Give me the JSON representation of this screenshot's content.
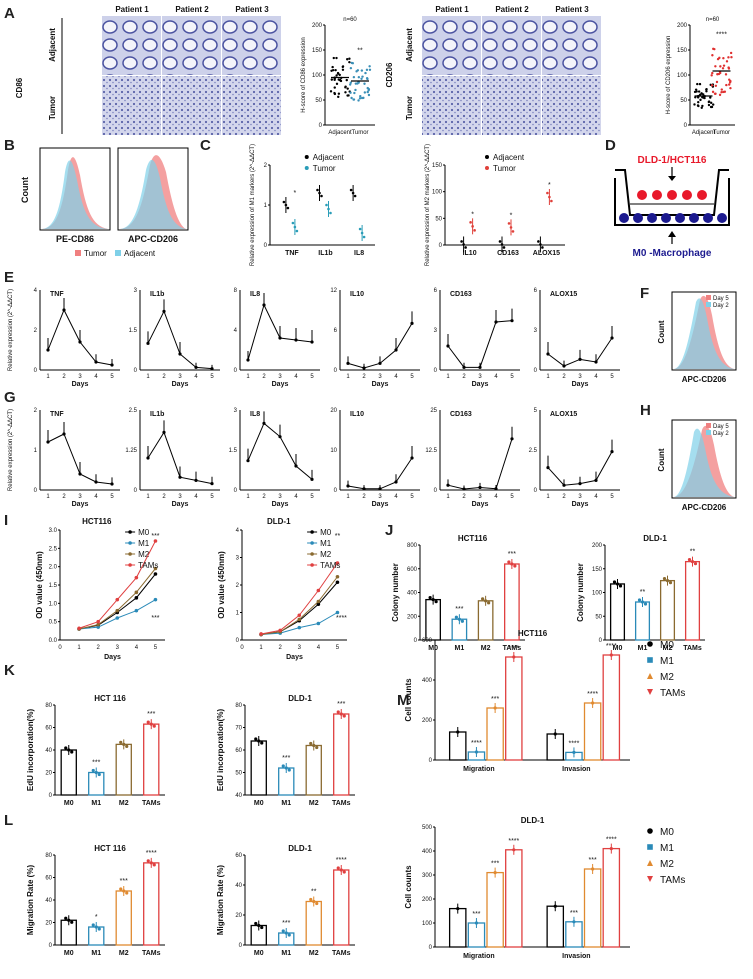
{
  "panel_letters": {
    "A": "A",
    "B": "B",
    "C": "C",
    "D": "D",
    "E": "E",
    "F": "F",
    "G": "G",
    "H": "H",
    "I": "I",
    "J": "J",
    "K": "K",
    "L": "L",
    "M": "M"
  },
  "panelA": {
    "patients": [
      "Patient 1",
      "Patient 2",
      "Patient 3"
    ],
    "left": {
      "marker": "CD86",
      "rows": [
        "Adjacent",
        "Tumor"
      ]
    },
    "right": {
      "marker": "CD206",
      "rows": [
        "Adjacent",
        "Tumor"
      ]
    },
    "colors": {
      "tissue_bg": "#c9cde6",
      "stain": "#8a5a3a",
      "nuclei": "#3b4496"
    }
  },
  "panelB": {
    "xlabels": [
      "PE-CD86",
      "APC-CD206"
    ],
    "ylabel": "Count",
    "legend": [
      "Tumor",
      "Adjacent"
    ],
    "colors": {
      "tumor": "#f08080",
      "adjacent": "#7fd0e8"
    }
  },
  "panelD": {
    "top": "DLD-1/HCT116",
    "bottom": "M0 -Macrophage",
    "colors": {
      "red": "#e8182a",
      "blue": "#1c1a8f"
    }
  },
  "panelF": {
    "legend": [
      "Day 5",
      "Day 2"
    ],
    "xlabel": "APC-CD206",
    "ylabel": "Count"
  },
  "panelH": {
    "legend": [
      "Day 5",
      "Day 2"
    ],
    "xlabel": "APC-CD206",
    "ylabel": "Count"
  },
  "chart_data": [
    {
      "id": "A1",
      "type": "scatter",
      "title": "n=60",
      "ylabel": "H-score of CD86 expression",
      "categories": [
        "Adjacent",
        "Tumor"
      ],
      "means": [
        95,
        88
      ],
      "sig": [
        "",
        "**"
      ],
      "colors": [
        "#000000",
        "#3a8fb7"
      ]
    },
    {
      "id": "A2",
      "type": "scatter",
      "title": "n=60",
      "ylabel": "H-score of CD206 expression",
      "categories": [
        "Adjacent",
        "Tumor"
      ],
      "means": [
        58,
        108
      ],
      "sig": [
        "",
        "****"
      ],
      "colors": [
        "#000000",
        "#e03030"
      ]
    },
    {
      "id": "C1",
      "type": "scatter",
      "ylabel": "Relative expression of M1 markers (2^-ΔΔCT)",
      "categories": [
        "TNF",
        "IL1b",
        "IL8"
      ],
      "legend": [
        "Adjacent",
        "Tumor"
      ],
      "adjacent": [
        1.0,
        1.3,
        1.3
      ],
      "tumor": [
        0.45,
        0.9,
        0.3
      ],
      "sig": [
        "*",
        "",
        ""
      ]
    },
    {
      "id": "C2",
      "type": "scatter",
      "ylabel": "Relative expression of M2 markers (2^-ΔΔCT)",
      "categories": [
        "IL10",
        "CD163",
        "ALOX15"
      ],
      "legend": [
        "Adjacent",
        "Tumor"
      ],
      "adjacent": [
        1,
        1,
        1
      ],
      "tumor": [
        35,
        33,
        90
      ],
      "sig": [
        "*",
        "*",
        "*"
      ]
    },
    {
      "id": "E",
      "type": "line",
      "ylabel": "Relative expression (2^-ΔΔCT)",
      "xlabel": "Days",
      "x": [
        1,
        2,
        3,
        4,
        5
      ],
      "series": [
        {
          "name": "TNF",
          "values": [
            1.0,
            3.0,
            1.4,
            0.4,
            0.25
          ],
          "ymax": 4
        },
        {
          "name": "IL1b",
          "values": [
            1.0,
            2.2,
            0.6,
            0.1,
            0.05
          ],
          "ymax": 3
        },
        {
          "name": "IL8",
          "values": [
            1.0,
            6.5,
            3.2,
            3.0,
            2.8
          ],
          "ymax": 8
        },
        {
          "name": "IL10",
          "values": [
            1.0,
            0.3,
            1.0,
            3.0,
            7.0
          ],
          "ymax": 12
        },
        {
          "name": "CD163",
          "values": [
            1.8,
            0.2,
            0.2,
            3.6,
            3.7
          ],
          "ymax": 6
        },
        {
          "name": "ALOX15",
          "values": [
            1.2,
            0.3,
            0.8,
            0.6,
            2.4
          ],
          "ymax": 6
        }
      ]
    },
    {
      "id": "G",
      "type": "line",
      "ylabel": "Relative expression (2^-ΔΔCT)",
      "xlabel": "Days",
      "x": [
        1,
        2,
        3,
        4,
        5
      ],
      "series": [
        {
          "name": "TNF",
          "values": [
            1.2,
            1.4,
            0.4,
            0.2,
            0.15
          ],
          "ymax": 2
        },
        {
          "name": "IL1b",
          "values": [
            1.0,
            1.8,
            0.4,
            0.3,
            0.2
          ],
          "ymax": 2.5
        },
        {
          "name": "IL8",
          "values": [
            1.1,
            2.5,
            2.0,
            0.9,
            0.4
          ],
          "ymax": 3
        },
        {
          "name": "IL10",
          "values": [
            1.0,
            0.3,
            0.3,
            2.0,
            8.0
          ],
          "ymax": 20
        },
        {
          "name": "CD163",
          "values": [
            1.5,
            0.3,
            0.8,
            0.4,
            16.0
          ],
          "ymax": 25
        },
        {
          "name": "ALOX15",
          "values": [
            1.4,
            0.3,
            0.4,
            0.6,
            2.4
          ],
          "ymax": 5
        }
      ]
    },
    {
      "id": "I1",
      "type": "line",
      "title": "HCT116",
      "ylabel": "OD value (450nm)",
      "xlabel": "Days",
      "x": [
        1,
        2,
        3,
        4,
        5
      ],
      "ylim": [
        0,
        3
      ],
      "yticks": [
        0.0,
        0.5,
        1.0,
        1.5,
        2.0,
        2.5,
        3.0
      ],
      "series": [
        {
          "name": "M0",
          "values": [
            0.3,
            0.4,
            0.75,
            1.15,
            1.8
          ]
        },
        {
          "name": "M1",
          "values": [
            0.3,
            0.35,
            0.6,
            0.8,
            1.1
          ]
        },
        {
          "name": "M2",
          "values": [
            0.3,
            0.42,
            0.8,
            1.3,
            1.95
          ]
        },
        {
          "name": "TAMs",
          "values": [
            0.32,
            0.5,
            1.1,
            1.7,
            2.7
          ]
        }
      ],
      "sig_top": "***",
      "sig_bottom": "***"
    },
    {
      "id": "I2",
      "type": "line",
      "title": "DLD-1",
      "ylabel": "OD value (450nm)",
      "xlabel": "Days",
      "x": [
        1,
        2,
        3,
        4,
        5
      ],
      "ylim": [
        0,
        4
      ],
      "yticks": [
        0,
        1,
        2,
        3,
        4
      ],
      "series": [
        {
          "name": "M0",
          "values": [
            0.2,
            0.3,
            0.7,
            1.3,
            2.1
          ]
        },
        {
          "name": "M1",
          "values": [
            0.2,
            0.25,
            0.45,
            0.6,
            1.0
          ]
        },
        {
          "name": "M2",
          "values": [
            0.2,
            0.3,
            0.75,
            1.4,
            2.3
          ]
        },
        {
          "name": "TAMs",
          "values": [
            0.22,
            0.35,
            0.9,
            1.8,
            2.8
          ]
        }
      ],
      "sig_top": "**",
      "sig_bottom": "****"
    },
    {
      "id": "J1",
      "type": "bar",
      "title": "HCT116",
      "ylabel": "Colony number",
      "categories": [
        "M0",
        "M1",
        "M2",
        "TAMs"
      ],
      "values": [
        340,
        175,
        330,
        640
      ],
      "ylim": [
        0,
        800
      ],
      "yticks": [
        0,
        200,
        400,
        600,
        800
      ],
      "sig": [
        "",
        "***",
        "",
        "***"
      ]
    },
    {
      "id": "J2",
      "type": "bar",
      "title": "DLD-1",
      "ylabel": "Colony number",
      "categories": [
        "M0",
        "M1",
        "M2",
        "TAMs"
      ],
      "values": [
        118,
        80,
        125,
        165
      ],
      "ylim": [
        0,
        200
      ],
      "yticks": [
        0,
        50,
        100,
        150,
        200
      ],
      "sig": [
        "",
        "**",
        "",
        "**"
      ]
    },
    {
      "id": "K1",
      "type": "bar",
      "title": "HCT 116",
      "ylabel": "EdU incorporation(%)",
      "categories": [
        "M0",
        "M1",
        "M2",
        "TAMs"
      ],
      "values": [
        40,
        20,
        45,
        63
      ],
      "ylim": [
        0,
        80
      ],
      "yticks": [
        0,
        20,
        40,
        60,
        80
      ],
      "sig": [
        "",
        "***",
        "",
        "***"
      ]
    },
    {
      "id": "K2",
      "type": "bar",
      "title": "DLD-1",
      "ylabel": "EdU incorporation(%)",
      "categories": [
        "M0",
        "M1",
        "M2",
        "TAMs"
      ],
      "values": [
        64,
        52,
        62,
        76
      ],
      "ylim": [
        40,
        80
      ],
      "yticks": [
        40,
        50,
        60,
        70,
        80
      ],
      "sig": [
        "",
        "***",
        "",
        "***"
      ]
    },
    {
      "id": "L1",
      "type": "bar",
      "title": "HCT 116",
      "ylabel": "Migration Rate (%)",
      "categories": [
        "M0",
        "M1",
        "M2",
        "TAMs"
      ],
      "values": [
        22,
        16,
        48,
        73
      ],
      "ylim": [
        0,
        80
      ],
      "yticks": [
        0,
        20,
        40,
        60,
        80
      ],
      "sig": [
        "",
        "*",
        "***",
        "****"
      ]
    },
    {
      "id": "L2",
      "type": "bar",
      "title": "DLD-1",
      "ylabel": "Migration Rate (%)",
      "categories": [
        "M0",
        "M1",
        "M2",
        "TAMs"
      ],
      "values": [
        13,
        8,
        29,
        50
      ],
      "ylim": [
        0,
        60
      ],
      "yticks": [
        0,
        20,
        40,
        60
      ],
      "sig": [
        "",
        "***",
        "**",
        "****"
      ]
    },
    {
      "id": "M1",
      "type": "bar",
      "title": "HCT116",
      "ylabel": "Cell counts",
      "categories": [
        "Migration",
        "Invasion"
      ],
      "groups": [
        "M0",
        "M1",
        "M2",
        "TAMs"
      ],
      "values": [
        [
          140,
          40,
          260,
          515
        ],
        [
          130,
          38,
          285,
          525
        ]
      ],
      "ylim": [
        0,
        600
      ],
      "yticks": [
        0,
        200,
        400,
        600
      ],
      "sig": [
        [
          "",
          "****",
          "***",
          "****"
        ],
        [
          "",
          "****",
          "****",
          "****"
        ]
      ]
    },
    {
      "id": "M2",
      "type": "bar",
      "title": "DLD-1",
      "ylabel": "Cell counts",
      "categories": [
        "Migration",
        "Invasion"
      ],
      "groups": [
        "M0",
        "M1",
        "M2",
        "TAMs"
      ],
      "values": [
        [
          160,
          100,
          310,
          405
        ],
        [
          170,
          105,
          325,
          410
        ]
      ],
      "ylim": [
        0,
        500
      ],
      "yticks": [
        0,
        100,
        200,
        300,
        400,
        500
      ],
      "sig": [
        [
          "",
          "***",
          "***",
          "****"
        ],
        [
          "",
          "***",
          "***",
          "****"
        ]
      ]
    }
  ]
}
